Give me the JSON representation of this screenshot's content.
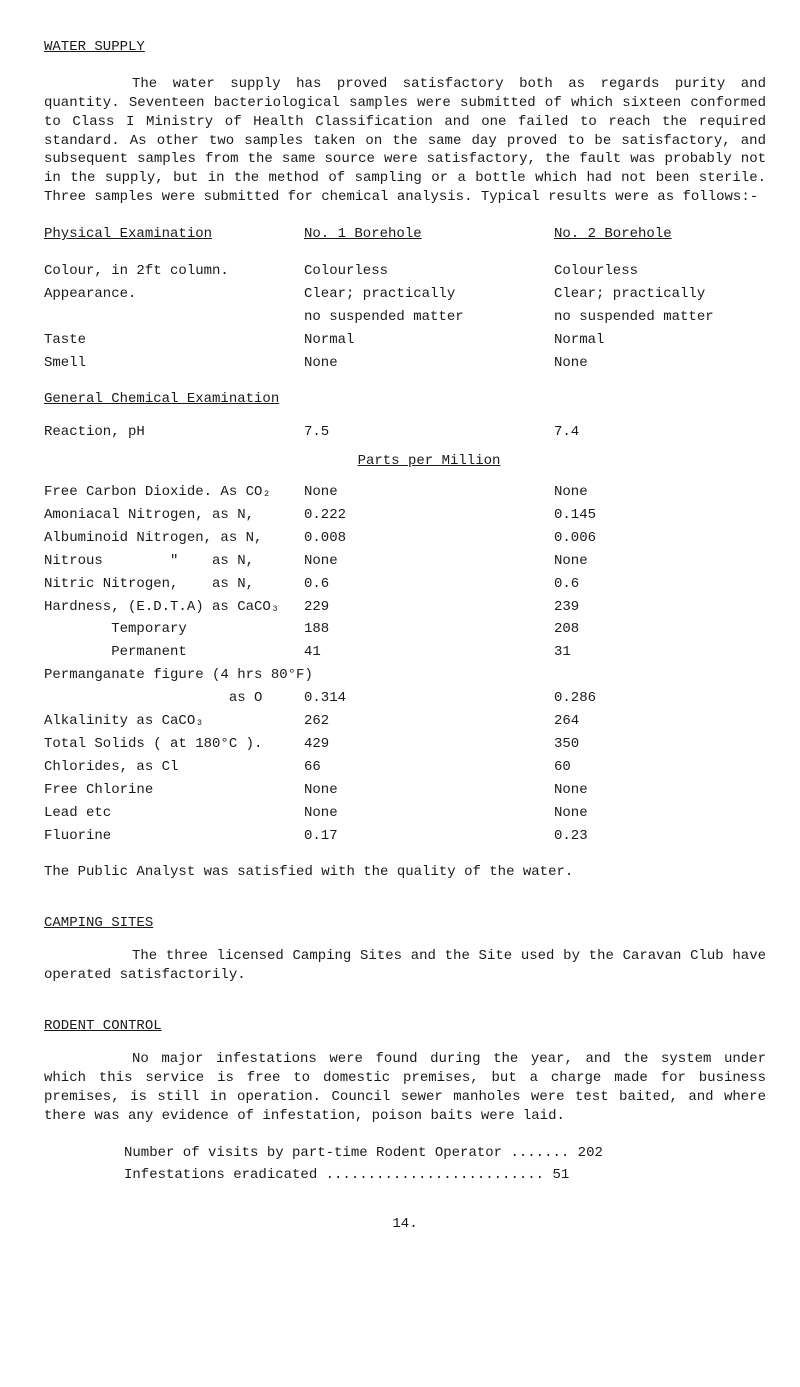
{
  "title": "WATER SUPPLY",
  "intro": "The water supply has proved satisfactory both as regards purity and quantity.  Seventeen bacteriological samples were submitted of which sixteen conformed to Class I Ministry of Health Classification and one failed to reach the required standard.  As other two samples taken on the same day proved to be satisfactory, and subsequent samples from the same source were satisfactory, the fault was probably not in the supply, but in the method of sampling or a bottle which had not been sterile. Three samples were submitted for chemical analysis.  Typical results were as follows:-",
  "headers": {
    "phys": "Physical Examination",
    "no1": "No. 1 Borehole",
    "no2": "No. 2 Borehole"
  },
  "phys_rows": [
    {
      "a": "Colour, in 2ft column.",
      "b": "Colourless",
      "c": "Colourless"
    },
    {
      "a": "Appearance.",
      "b": "Clear; practically",
      "c": "Clear; practically"
    },
    {
      "a": "",
      "b": "no suspended matter",
      "c": "no suspended matter"
    },
    {
      "a": "Taste",
      "b": "Normal",
      "c": "Normal"
    },
    {
      "a": "Smell",
      "b": "None",
      "c": "None"
    }
  ],
  "gen_chem": "General Chemical Examination",
  "reaction": {
    "a": "Reaction, pH",
    "b": "7.5",
    "c": "7.4"
  },
  "ppm": "Parts per Million",
  "chem_rows": [
    {
      "a": "Free Carbon Dioxide. As CO₂",
      "b": "None",
      "c": "None"
    },
    {
      "a": "Amoniacal Nitrogen, as N,",
      "b": "0.222",
      "c": "0.145"
    },
    {
      "a": "Albuminoid Nitrogen, as N,",
      "b": "0.008",
      "c": "0.006"
    },
    {
      "a": "Nitrous        \"    as N,",
      "b": "None",
      "c": "None"
    },
    {
      "a": "Nitric Nitrogen,    as N,",
      "b": "0.6",
      "c": "0.6"
    },
    {
      "a": "Hardness, (E.D.T.A) as CaCO₃",
      "b": "229",
      "c": "239"
    },
    {
      "a": "        Temporary",
      "b": "188",
      "c": "208"
    },
    {
      "a": "        Permanent",
      "b": "41",
      "c": "31"
    },
    {
      "a": "Permanganate figure (4 hrs 80°F)",
      "b": "",
      "c": ""
    },
    {
      "a": "                      as O",
      "b": "0.314",
      "c": "0.286"
    },
    {
      "a": "Alkalinity as CaCO₃",
      "b": "262",
      "c": "264"
    },
    {
      "a": "Total Solids ( at 180°C ).",
      "b": "429",
      "c": "350"
    },
    {
      "a": "Chlorides, as Cl",
      "b": "66",
      "c": "60"
    },
    {
      "a": "Free Chlorine",
      "b": "None",
      "c": "None"
    },
    {
      "a": "Lead etc",
      "b": "None",
      "c": "None"
    },
    {
      "a": "Fluorine",
      "b": "0.17",
      "c": "0.23"
    }
  ],
  "analyst": "The Public Analyst was satisfied with the quality of the water.",
  "camping_title": "CAMPING SITES",
  "camping_body": "The three licensed Camping Sites and the Site used by the Caravan Club have operated satisfactorily.",
  "rodent_title": "RODENT CONTROL",
  "rodent_body": "No major infestations were found during the year, and the system under which this service is free to domestic premises, but a charge made for business premises, is still in operation.  Council sewer manholes were test baited, and where there was any evidence of infestation, poison baits were laid.",
  "visits_line": "Number of visits by part-time Rodent Operator ....... 202",
  "erad_line": "Infestations eradicated  ..........................  51",
  "page": "14."
}
